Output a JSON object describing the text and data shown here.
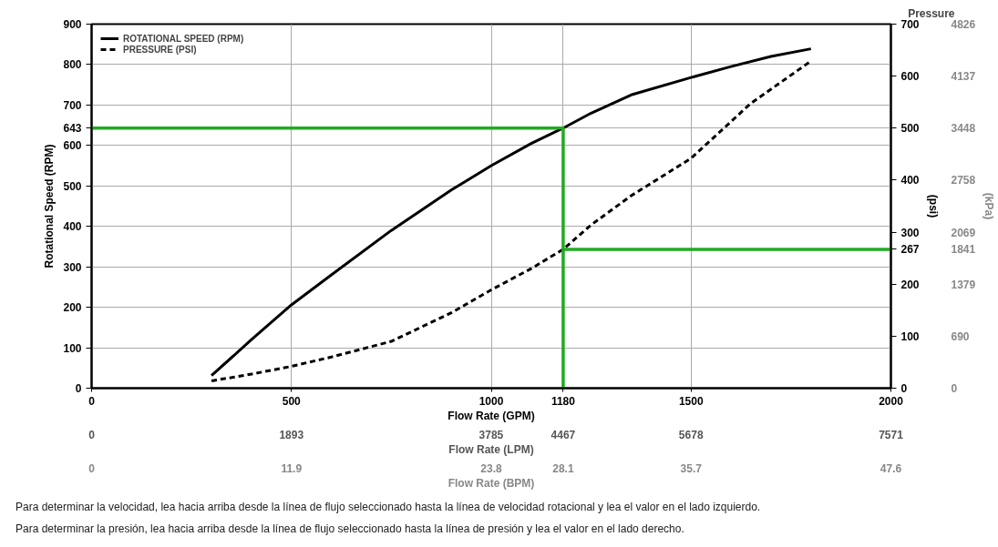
{
  "chart_data": {
    "type": "line",
    "title": "Pressure",
    "xlabel": "Flow Rate (GPM)",
    "x2label": "Flow Rate (LPM)",
    "ylabel": "Rotational Speed (RPM)",
    "y2label": "(psi)",
    "y3label": "(kPa)",
    "annotations": [
      "Flow Rate (BPM)",
      "0",
      "11.9",
      "23.8",
      "28.1",
      "35.7",
      "47.6",
      "Para determinar la velocidad, lea hacia arriba desde la línea de flujo seleccionado hasta la línea de velocidad rotacional y lea el valor en el lado izquierdo.",
      "Para determinar la presión, lea hacia arriba desde la línea de flujo seleccionado hasta la línea de presión y lea el valor en el lado derecho."
    ],
    "xlim": [
      0,
      2000
    ],
    "xticks": [
      0,
      500,
      1000,
      1180,
      1500,
      2000
    ],
    "x2lim": [
      0,
      7571
    ],
    "x2ticks": [
      0,
      1893,
      3785,
      4467,
      5678,
      7571
    ],
    "ylim": [
      0,
      900
    ],
    "yticks": [
      0,
      100,
      200,
      300,
      400,
      500,
      600,
      643,
      700,
      800,
      900
    ],
    "y2lim": [
      0,
      700
    ],
    "y2ticks": [
      0,
      100,
      200,
      267,
      300,
      400,
      500,
      600,
      700
    ],
    "y3lim": [
      0,
      4826
    ],
    "y3ticks": [
      0,
      690,
      1379,
      1841,
      2069,
      2758,
      3448,
      4137,
      4826
    ],
    "grid": true,
    "legend": "top left",
    "series": [
      {
        "name": "ROTATIONAL SPEED (RPM)",
        "color": "#000000",
        "line_style": "solid",
        "x": [
          300,
          400,
          500,
          600,
          750,
          900,
          1000,
          1100,
          1180,
          1250,
          1350,
          1500,
          1600,
          1700,
          1800
        ],
        "values": [
          31,
          120,
          206,
          280,
          390,
          490,
          550,
          605,
          643,
          680,
          725,
          768,
          795,
          820,
          839
        ]
      },
      {
        "name": "PRESSURE (PSI)",
        "color": "#000000",
        "line_style": "dashed",
        "axis": "y2",
        "x": [
          300,
          400,
          500,
          600,
          750,
          900,
          1000,
          1100,
          1180,
          1250,
          1350,
          1500,
          1650,
          1800
        ],
        "values": [
          14,
          27,
          42,
          60,
          90,
          145,
          189,
          230,
          267,
          314,
          370,
          442,
          548,
          629
        ]
      },
      {
        "color": "#22aa22",
        "line_style": "solid",
        "x": [
          0,
          1180,
          1180
        ],
        "values": [
          643,
          643,
          0
        ]
      },
      {
        "color": "#22aa22",
        "line_style": "solid",
        "axis": "y2",
        "x": [
          1180,
          2000
        ],
        "values": [
          267,
          267
        ]
      }
    ]
  }
}
